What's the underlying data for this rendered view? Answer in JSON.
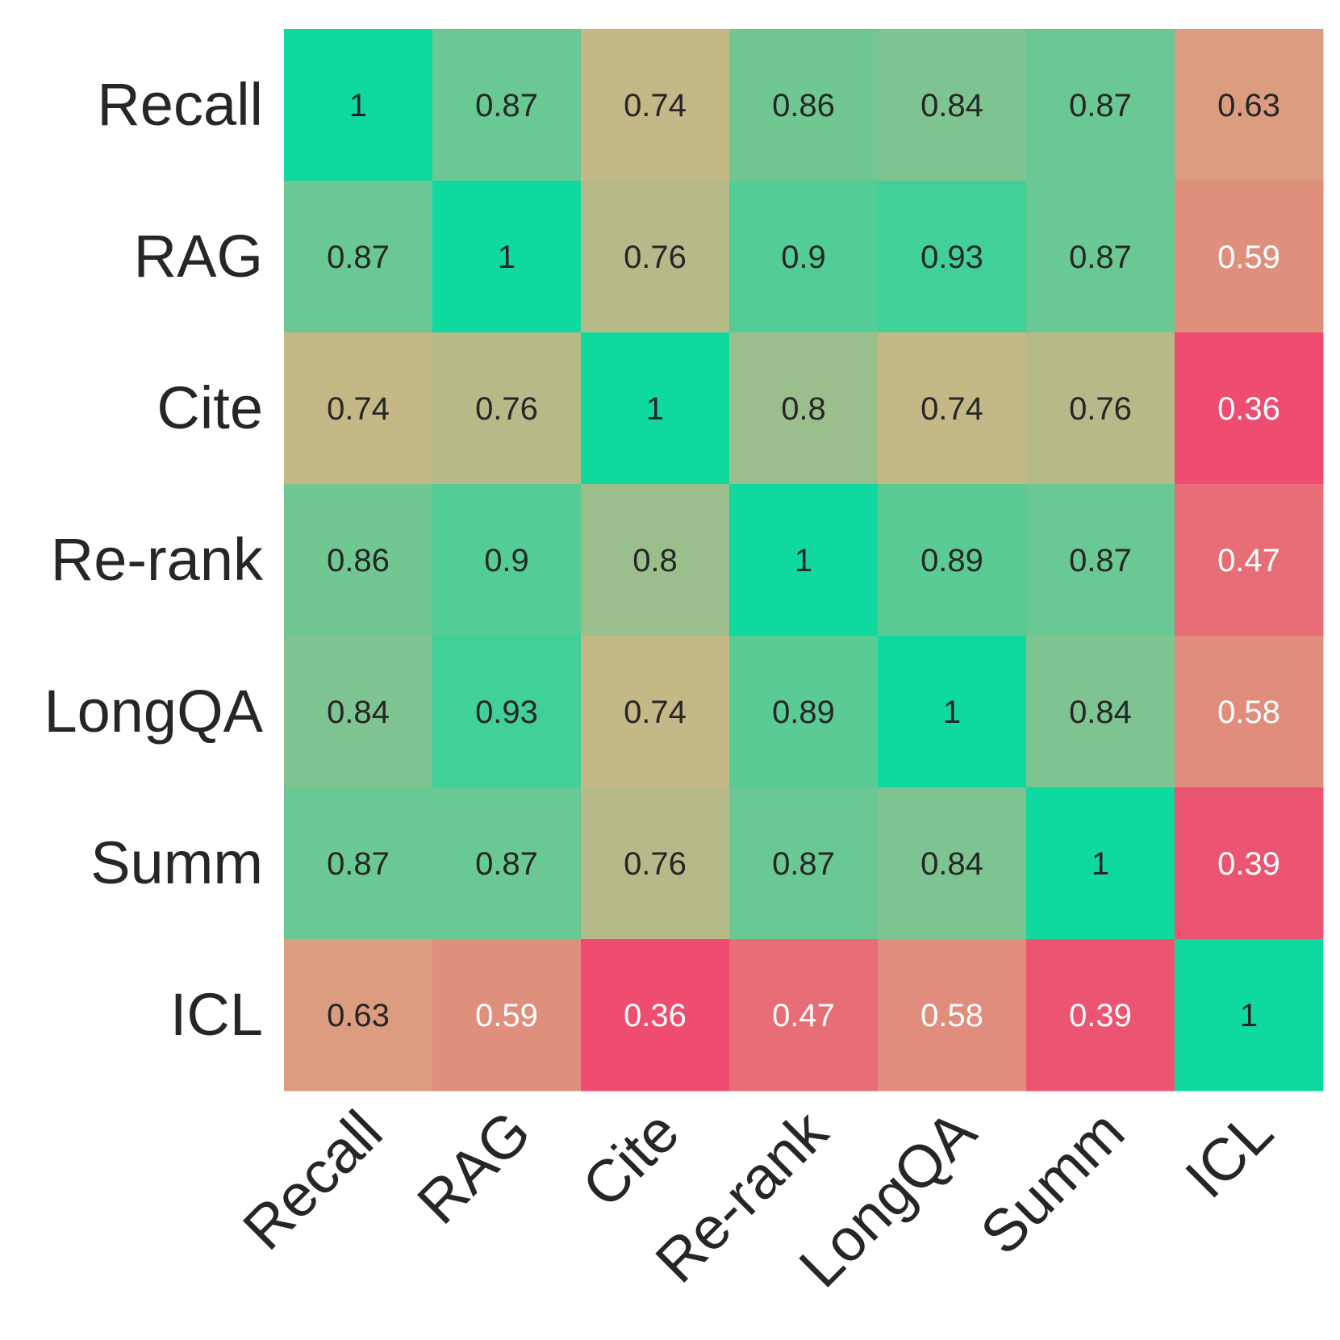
{
  "chart_data": {
    "type": "heatmap",
    "title": "",
    "xlabel": "",
    "ylabel": "",
    "rows": [
      "Recall",
      "RAG",
      "Cite",
      "Re-rank",
      "LongQA",
      "Summ",
      "ICL"
    ],
    "columns": [
      "Recall",
      "RAG",
      "Cite",
      "Re-rank",
      "LongQA",
      "Summ",
      "ICL"
    ],
    "values": [
      [
        1,
        0.87,
        0.74,
        0.86,
        0.84,
        0.87,
        0.63
      ],
      [
        0.87,
        1,
        0.76,
        0.9,
        0.93,
        0.87,
        0.59
      ],
      [
        0.74,
        0.76,
        1,
        0.8,
        0.74,
        0.76,
        0.36
      ],
      [
        0.86,
        0.9,
        0.8,
        1,
        0.89,
        0.87,
        0.47
      ],
      [
        0.84,
        0.93,
        0.74,
        0.89,
        1,
        0.84,
        0.58
      ],
      [
        0.87,
        0.87,
        0.76,
        0.87,
        0.84,
        1,
        0.39
      ],
      [
        0.63,
        0.59,
        0.36,
        0.47,
        0.58,
        0.39,
        1
      ]
    ],
    "value_labels": [
      [
        "1",
        "0.87",
        "0.74",
        "0.86",
        "0.84",
        "0.87",
        "0.63"
      ],
      [
        "0.87",
        "1",
        "0.76",
        "0.9",
        "0.93",
        "0.87",
        "0.59"
      ],
      [
        "0.74",
        "0.76",
        "1",
        "0.8",
        "0.74",
        "0.76",
        "0.36"
      ],
      [
        "0.86",
        "0.9",
        "0.8",
        "1",
        "0.89",
        "0.87",
        "0.47"
      ],
      [
        "0.84",
        "0.93",
        "0.74",
        "0.89",
        "1",
        "0.84",
        "0.58"
      ],
      [
        "0.87",
        "0.87",
        "0.76",
        "0.87",
        "0.84",
        "1",
        "0.39"
      ],
      [
        "0.63",
        "0.59",
        "0.36",
        "0.47",
        "0.58",
        "0.39",
        "1"
      ]
    ],
    "color_range": [
      0.36,
      1
    ],
    "colors": {
      "low": "#ee4c70",
      "mid": "#d7b484",
      "high": "#0fd99f",
      "text_dark": "#262626",
      "text_light": "#ffffff"
    },
    "colorbar": false,
    "grid": false
  }
}
